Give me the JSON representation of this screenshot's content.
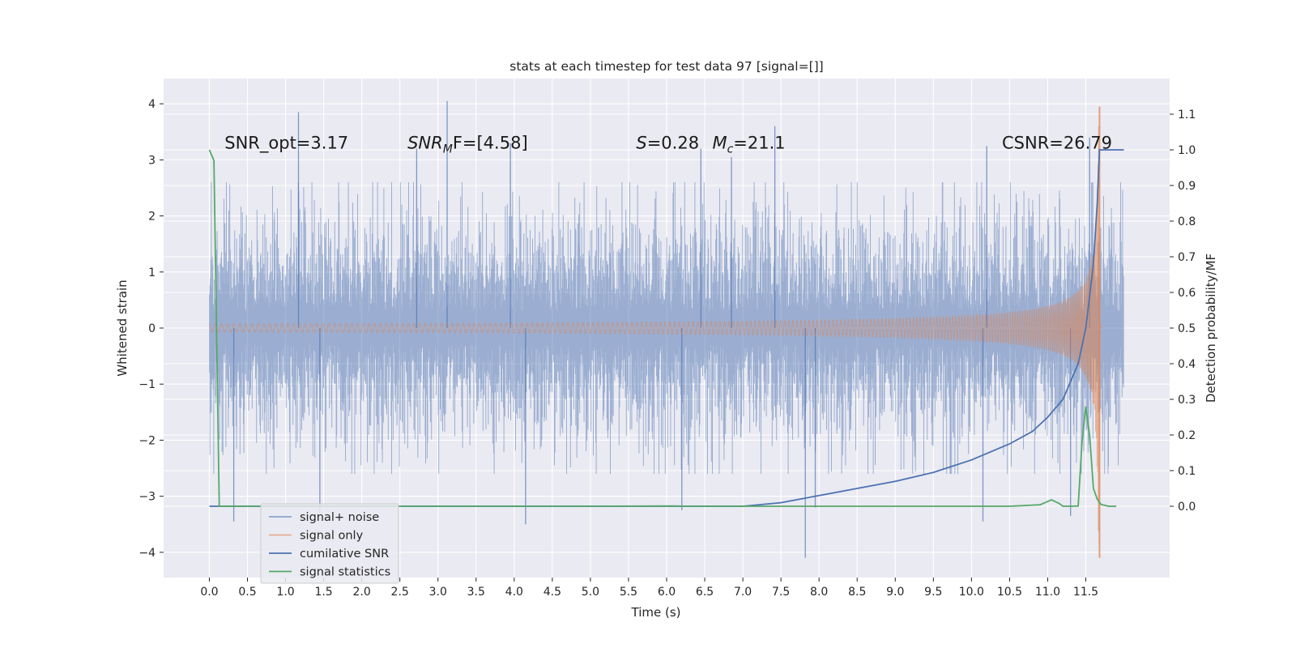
{
  "chart_data": {
    "type": "line",
    "title": "stats at each timestep for test data 97 [signal=[]]",
    "xlabel": "Time (s)",
    "ylabel": "Whitened strain",
    "ylabel_right": "Detection probability/MF",
    "xlim": [
      -0.6,
      12.6
    ],
    "ylim": [
      -4.45,
      4.45
    ],
    "ylim_right": [
      -0.2,
      1.2
    ],
    "x_ticks": [
      0.0,
      0.5,
      1.0,
      1.5,
      2.0,
      2.5,
      3.0,
      3.5,
      4.0,
      4.5,
      5.0,
      5.5,
      6.0,
      6.5,
      7.0,
      7.5,
      8.0,
      8.5,
      9.0,
      9.5,
      10.0,
      10.5,
      11.0,
      11.5
    ],
    "x_tick_labels": [
      "0.0",
      "0.5",
      "1.0",
      "1.5",
      "2.0",
      "2.5",
      "3.0",
      "3.5",
      "4.0",
      "4.5",
      "5.0",
      "5.5",
      "6.0",
      "6.5",
      "7.0",
      "7.5",
      "8.0",
      "8.5",
      "9.0",
      "9.5",
      "10.0",
      "10.5",
      "11.0",
      "11.5"
    ],
    "y_ticks": [
      4,
      3,
      2,
      1,
      0,
      -1,
      -2,
      -3,
      -4
    ],
    "y_tick_labels": [
      "4",
      "3",
      "2",
      "1",
      "0",
      "−1",
      "−2",
      "−3",
      "−4"
    ],
    "y_right_ticks": [
      1.1,
      1.0,
      0.9,
      0.8,
      0.7,
      0.6,
      0.5,
      0.4,
      0.3,
      0.2,
      0.1,
      0.0
    ],
    "y_right_tick_labels": [
      "1.1",
      "1.0",
      "0.9",
      "0.8",
      "0.7",
      "0.6",
      "0.5",
      "0.4",
      "0.3",
      "0.2",
      "0.1",
      "0.0"
    ],
    "grid": true,
    "legend_position": "lower-left",
    "background": "#eaeaf2",
    "annotations": [
      {
        "name": "snr-opt",
        "text": "SNR_opt=3.17",
        "x": 0.2,
        "y": 3.3
      },
      {
        "name": "snr-mf",
        "text": "SNR",
        "sub": "M",
        "rest": "F=[4.58]",
        "x": 2.6,
        "y": 3.3,
        "italic_head": true
      },
      {
        "name": "s-value",
        "text": "S",
        "rest": "=0.28",
        "x": 5.6,
        "y": 3.3,
        "italic_head": true
      },
      {
        "name": "chirp-mass",
        "text": "M",
        "sub": "c",
        "rest": "=21.1",
        "x": 6.6,
        "y": 3.3,
        "italic_head": true
      },
      {
        "name": "csnr",
        "text": "CSNR=26.79",
        "x": 10.4,
        "y": 3.3
      }
    ],
    "series": [
      {
        "name": "signal+ noise",
        "color": "#4c72b0",
        "opacity": 0.5,
        "axis": "left",
        "style": "noise",
        "x_range": [
          0.0,
          12.0
        ],
        "band_amplitude": 1.3,
        "band_amplitude_extreme": 2.6,
        "peaks": [
          {
            "x": 1.17,
            "y": 3.85
          },
          {
            "x": 3.12,
            "y": 4.05
          },
          {
            "x": 2.72,
            "y": 3.2
          },
          {
            "x": 6.45,
            "y": 3.2
          },
          {
            "x": 7.42,
            "y": 3.6
          },
          {
            "x": 11.55,
            "y": 3.4
          },
          {
            "x": 3.95,
            "y": 3.3
          },
          {
            "x": 6.85,
            "y": 3.05
          },
          {
            "x": 10.2,
            "y": 3.25
          },
          {
            "x": 7.82,
            "y": -4.1
          },
          {
            "x": 4.15,
            "y": -3.5
          },
          {
            "x": 0.32,
            "y": -3.45
          },
          {
            "x": 1.45,
            "y": -3.3
          },
          {
            "x": 10.15,
            "y": -3.45
          },
          {
            "x": 7.95,
            "y": -3.2
          },
          {
            "x": 6.2,
            "y": -3.25
          },
          {
            "x": 11.3,
            "y": -3.35
          }
        ]
      },
      {
        "name": "signal only",
        "color": "#dd8452",
        "opacity": 0.55,
        "axis": "left",
        "style": "chirp",
        "x_range": [
          0.0,
          11.72
        ],
        "merger_time": 11.68,
        "peak_positive": 3.95,
        "peak_negative": -4.1
      },
      {
        "name": "cumilative SNR",
        "color": "#4c72b0",
        "axis": "right",
        "x": [
          0.0,
          7.0,
          7.5,
          8.0,
          8.5,
          9.0,
          9.5,
          10.0,
          10.5,
          10.8,
          11.0,
          11.2,
          11.4,
          11.5,
          11.6,
          11.65,
          11.68,
          11.7,
          12.0
        ],
        "y": [
          0.0,
          0.0,
          0.01,
          0.03,
          0.05,
          0.07,
          0.095,
          0.13,
          0.175,
          0.21,
          0.25,
          0.3,
          0.4,
          0.5,
          0.68,
          0.85,
          1.0,
          1.0,
          1.0
        ]
      },
      {
        "name": "signal statistics",
        "color": "#55a868",
        "axis": "right",
        "x": [
          0.0,
          0.06,
          0.13,
          0.14,
          1.0,
          3.0,
          5.0,
          6.1,
          6.3,
          7.0,
          9.0,
          10.5,
          10.9,
          11.05,
          11.15,
          11.2,
          11.3,
          11.4,
          11.45,
          11.5,
          11.55,
          11.6,
          11.65,
          11.7,
          11.8,
          11.9
        ],
        "y": [
          1.0,
          0.97,
          0.0,
          0.0,
          0.0,
          0.0,
          0.0,
          0.001,
          0.0,
          0.0,
          0.0,
          0.0,
          0.004,
          0.018,
          0.008,
          0.0,
          0.0,
          0.001,
          0.18,
          0.28,
          0.2,
          0.05,
          0.02,
          0.005,
          0.0,
          0.0
        ]
      }
    ]
  }
}
